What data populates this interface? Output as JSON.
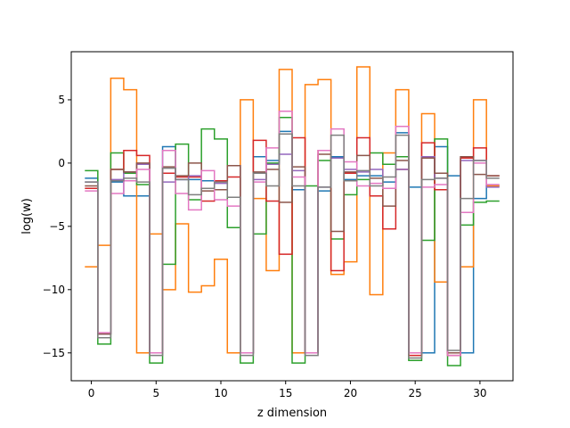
{
  "chart_data": {
    "type": "line",
    "step": true,
    "title": "",
    "xlabel": "z dimension",
    "ylabel": "log(w)",
    "xlim": [
      -1.55,
      32.55
    ],
    "ylim": [
      -17.2,
      8.8
    ],
    "xticks": [
      0,
      5,
      10,
      15,
      20,
      25,
      30
    ],
    "yticks": [
      -15,
      -10,
      -5,
      0,
      5
    ],
    "grid": false,
    "legend": "none",
    "series": [
      {
        "color": "#1f77b4",
        "values": [
          -1.2,
          -13.5,
          -1.5,
          -2.6,
          -2.6,
          -15.0,
          1.3,
          -1.3,
          -1.3,
          -1.4,
          -1.4,
          -0.2,
          -15.0,
          0.5,
          0.2,
          2.5,
          -2.1,
          -15.0,
          -2.2,
          0.5,
          -1.3,
          -1.0,
          -1.0,
          -1.5,
          2.4,
          -1.9,
          -15.0,
          1.3,
          -1.0,
          -15.0,
          -2.8,
          -1.8
        ]
      },
      {
        "color": "#ff7f0e",
        "values": [
          -8.2,
          -6.5,
          6.7,
          5.8,
          -15.0,
          -5.6,
          -10.0,
          -4.8,
          -10.2,
          -9.7,
          -7.6,
          -15.0,
          5.0,
          -2.8,
          -8.5,
          7.4,
          -15.0,
          6.2,
          6.6,
          -8.8,
          -7.8,
          7.6,
          -10.4,
          0.8,
          5.8,
          -15.0,
          3.9,
          -9.4,
          -15.0,
          -8.2,
          5.0,
          -1.8
        ]
      },
      {
        "color": "#2ca02c",
        "values": [
          -0.6,
          -14.3,
          0.8,
          -0.8,
          -1.7,
          -15.8,
          -8.0,
          1.5,
          -2.9,
          2.7,
          1.9,
          -5.1,
          -15.8,
          -5.6,
          0.0,
          3.6,
          -15.8,
          -1.8,
          0.2,
          -6.0,
          -2.5,
          -1.3,
          0.8,
          -0.1,
          0.5,
          -15.6,
          -6.1,
          1.9,
          -16.0,
          -4.9,
          -3.1,
          -3.0
        ]
      },
      {
        "color": "#d62728",
        "values": [
          -2.0,
          -13.5,
          -0.5,
          1.0,
          0.6,
          -15.0,
          -0.8,
          -1.1,
          -1.1,
          -3.0,
          -1.4,
          -1.1,
          -15.0,
          1.8,
          -3.0,
          -7.2,
          2.0,
          -15.0,
          1.0,
          -8.5,
          -0.8,
          2.0,
          -2.6,
          -5.2,
          -0.5,
          -15.2,
          1.6,
          -2.1,
          -15.2,
          0.4,
          1.2,
          -1.0
        ]
      },
      {
        "color": "#9467bd",
        "values": [
          -1.5,
          -13.5,
          -1.3,
          -0.7,
          -0.1,
          -15.0,
          -1.5,
          -1.3,
          -1.0,
          -2.0,
          -1.6,
          -0.2,
          -15.0,
          -1.3,
          -0.1,
          0.7,
          -0.6,
          -15.0,
          -1.9,
          0.4,
          -0.5,
          -0.7,
          -0.5,
          -2.0,
          -0.5,
          -15.0,
          0.5,
          -1.2,
          -15.0,
          0.2,
          0.2,
          -1.9
        ]
      },
      {
        "color": "#8c564b",
        "values": [
          -1.8,
          -13.5,
          -0.5,
          -0.7,
          0.0,
          -15.0,
          -0.3,
          -1.0,
          0.0,
          -2.2,
          -2.1,
          -0.2,
          -15.0,
          -0.7,
          -0.5,
          -3.1,
          -0.3,
          -15.0,
          0.7,
          -5.4,
          -0.7,
          0.6,
          -1.2,
          -3.4,
          0.2,
          -15.0,
          0.4,
          -0.8,
          -15.0,
          0.5,
          -0.9,
          -1.0
        ]
      },
      {
        "color": "#e377c2",
        "values": [
          -2.2,
          -13.4,
          -2.4,
          -1.4,
          -0.5,
          -15.0,
          1.0,
          -2.4,
          -3.7,
          -0.6,
          -2.9,
          -3.4,
          -15.0,
          -1.5,
          1.2,
          4.1,
          -1.1,
          -15.0,
          1.0,
          2.7,
          0.1,
          -1.8,
          -1.6,
          -2.0,
          2.9,
          -15.0,
          -1.9,
          -1.7,
          -15.2,
          -3.9,
          0.0,
          -1.7
        ]
      },
      {
        "color": "#7f7f7f",
        "values": [
          -1.5,
          -13.8,
          -1.4,
          -1.2,
          -1.5,
          -15.2,
          -0.4,
          -1.3,
          -2.5,
          -2.0,
          -1.5,
          -2.7,
          -15.2,
          -0.8,
          -1.8,
          2.3,
          -1.8,
          -15.2,
          -1.9,
          2.2,
          -1.4,
          -0.6,
          -1.8,
          -1.1,
          2.2,
          -15.4,
          -1.3,
          -1.2,
          -14.8,
          -2.8,
          0.2,
          -1.2
        ]
      }
    ]
  }
}
